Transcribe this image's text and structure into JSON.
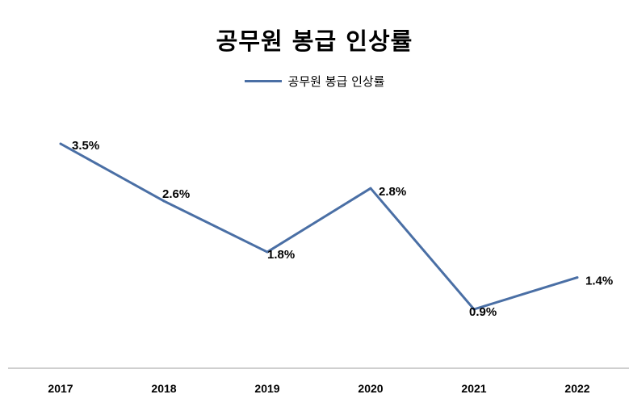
{
  "chart_data": {
    "type": "line",
    "title": "공무원 봉급 인상률",
    "categories": [
      "2017",
      "2018",
      "2019",
      "2020",
      "2021",
      "2022"
    ],
    "series": [
      {
        "name": "공무원 봉급 인상률",
        "values": [
          3.5,
          2.6,
          1.8,
          2.8,
          0.9,
          1.4
        ],
        "labels": [
          "3.5%",
          "2.6%",
          "1.8%",
          "2.8%",
          "0.9%",
          "1.4%"
        ],
        "color": "#4a6fa5"
      }
    ],
    "xlabel": "",
    "ylabel": "",
    "ylim": [
      0,
      4
    ],
    "grid": false,
    "legend": "top"
  }
}
